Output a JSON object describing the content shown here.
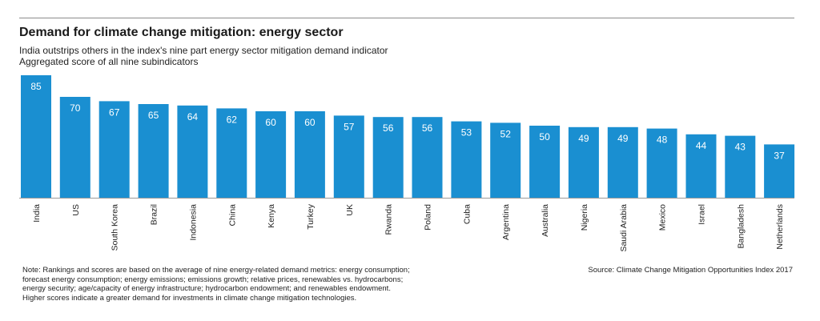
{
  "chart_data": {
    "type": "bar",
    "title": "Demand for climate change mitigation: energy sector",
    "subtitle": "India outstrips others in the index's nine part energy sector mitigation demand indicator",
    "ylabel": "Aggregated score of all nine subindicators",
    "categories": [
      "India",
      "US",
      "South Korea",
      "Brazil",
      "Indonesia",
      "China",
      "Kenya",
      "Turkey",
      "UK",
      "Rwanda",
      "Poland",
      "Cuba",
      "Argentina",
      "Australia",
      "Nigeria",
      "Saudi Arabia",
      "Mexico",
      "Israel",
      "Bangladesh",
      "Netherlands"
    ],
    "values": [
      85,
      70,
      67,
      65,
      64,
      62,
      60,
      60,
      57,
      56,
      56,
      53,
      52,
      50,
      49,
      49,
      48,
      44,
      43,
      37
    ],
    "ylim": [
      0,
      85
    ],
    "bar_color": "#1a8fd1",
    "grid": false,
    "legend": "none"
  },
  "note_lines": [
    "Note: Rankings and scores are based on the average of nine energy-related demand metrics: energy consumption;",
    "forecast energy consumption; energy emissions; emissions growth; relative prices, renewables vs. hydrocarbons;",
    "energy security; age/capacity of energy infrastructure; hydrocarbon endowment; and renewables endowment.",
    "Higher scores indicate a greater demand for investments in climate change mitigation technologies."
  ],
  "source": "Source: Climate Change Mitigation Opportunities Index 2017"
}
